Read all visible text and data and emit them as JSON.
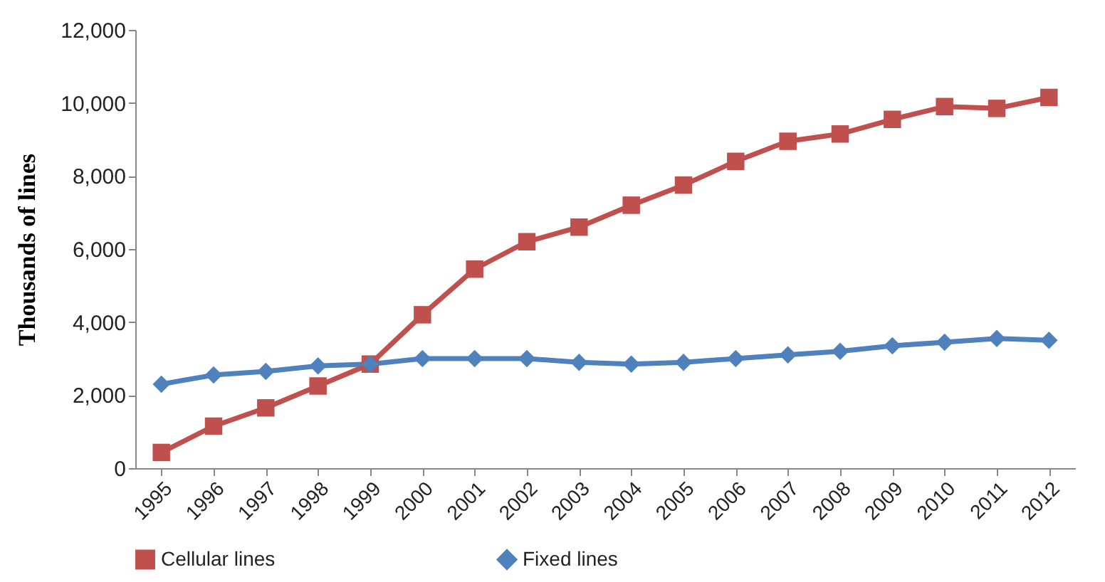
{
  "chart_data": {
    "type": "line",
    "ylabel": "Thousands of lines",
    "categories": [
      "1995",
      "1996",
      "1997",
      "1998",
      "1999",
      "2000",
      "2001",
      "2002",
      "2003",
      "2004",
      "2005",
      "2006",
      "2007",
      "2008",
      "2009",
      "2010",
      "2011",
      "2012"
    ],
    "series": [
      {
        "name": "Cellular lines",
        "color": "#c0504d",
        "marker": "square",
        "values": [
          430,
          1150,
          1650,
          2250,
          2850,
          4200,
          5450,
          6200,
          6600,
          7200,
          7750,
          8400,
          8950,
          9150,
          9550,
          9900,
          9850,
          10150
        ]
      },
      {
        "name": "Fixed lines",
        "color": "#4f81bd",
        "marker": "diamond",
        "values": [
          2300,
          2550,
          2650,
          2800,
          2850,
          3000,
          3000,
          3000,
          2900,
          2850,
          2900,
          3000,
          3100,
          3200,
          3350,
          3450,
          3550,
          3500
        ]
      }
    ],
    "ylim": [
      0,
      12000
    ],
    "yticks": [
      0,
      {
        "value": 2000,
        "label": "2,000"
      },
      {
        "value": 4000,
        "label": "4,000"
      },
      {
        "value": 6000,
        "label": "6,000"
      },
      {
        "value": 8000,
        "label": "8,000"
      },
      {
        "value": 10000,
        "label": "10,000"
      },
      {
        "value": 12000,
        "label": "12,000"
      }
    ],
    "grid": false,
    "legend": "bottom",
    "line_style": "solid"
  }
}
